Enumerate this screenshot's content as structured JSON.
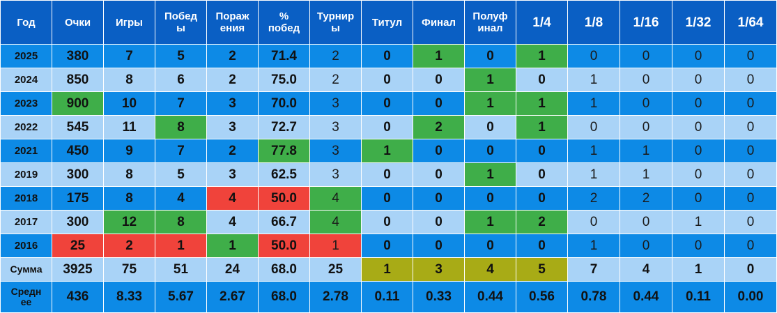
{
  "headers": [
    "Год",
    "Очки",
    "Игры",
    "Побед\nы",
    "Пораж\nения",
    "%\nпобед",
    "Турнир\nы",
    "Титул",
    "Финал",
    "Полуф\nинал",
    "1/4",
    "1/8",
    "1/16",
    "1/32",
    "1/64"
  ],
  "rows": [
    {
      "year": "2025",
      "values": [
        "380",
        "7",
        "5",
        "2",
        "71.4",
        "2",
        "0",
        "1",
        "0",
        "1",
        "0",
        "0",
        "0",
        "0"
      ]
    },
    {
      "year": "2024",
      "values": [
        "850",
        "8",
        "6",
        "2",
        "75.0",
        "2",
        "0",
        "0",
        "1",
        "0",
        "1",
        "0",
        "0",
        "0"
      ]
    },
    {
      "year": "2023",
      "values": [
        "900",
        "10",
        "7",
        "3",
        "70.0",
        "3",
        "0",
        "0",
        "1",
        "1",
        "1",
        "0",
        "0",
        "0"
      ]
    },
    {
      "year": "2022",
      "values": [
        "545",
        "11",
        "8",
        "3",
        "72.7",
        "3",
        "0",
        "2",
        "0",
        "1",
        "0",
        "0",
        "0",
        "0"
      ]
    },
    {
      "year": "2021",
      "values": [
        "450",
        "9",
        "7",
        "2",
        "77.8",
        "3",
        "1",
        "0",
        "0",
        "0",
        "1",
        "1",
        "0",
        "0"
      ]
    },
    {
      "year": "2019",
      "values": [
        "300",
        "8",
        "5",
        "3",
        "62.5",
        "3",
        "0",
        "0",
        "1",
        "0",
        "1",
        "1",
        "0",
        "0"
      ]
    },
    {
      "year": "2018",
      "values": [
        "175",
        "8",
        "4",
        "4",
        "50.0",
        "4",
        "0",
        "0",
        "0",
        "0",
        "2",
        "2",
        "0",
        "0"
      ]
    },
    {
      "year": "2017",
      "values": [
        "300",
        "12",
        "8",
        "4",
        "66.7",
        "4",
        "0",
        "0",
        "1",
        "2",
        "0",
        "0",
        "1",
        "0"
      ]
    },
    {
      "year": "2016",
      "values": [
        "25",
        "2",
        "1",
        "1",
        "50.0",
        "1",
        "0",
        "0",
        "0",
        "0",
        "1",
        "0",
        "0",
        "0"
      ]
    }
  ],
  "sum_row": {
    "label": "Сумма",
    "values": [
      "3925",
      "75",
      "51",
      "24",
      "68.0",
      "25",
      "1",
      "3",
      "4",
      "5",
      "7",
      "4",
      "1",
      "0"
    ]
  },
  "avg_row": {
    "label": "Средн\nее",
    "values": [
      "436",
      "8.33",
      "5.67",
      "2.67",
      "68.0",
      "2.78",
      "0.11",
      "0.33",
      "0.44",
      "0.56",
      "0.78",
      "0.44",
      "0.11",
      "0.00"
    ]
  },
  "colors": {
    "header_blue": "#0a5fc4",
    "row_dark_blue": "#0d8ae6",
    "row_light_blue": "#a9d3f7",
    "highlight_green": "#3fae49",
    "highlight_red": "#f0433b",
    "highlight_olive": "#a8ab16"
  }
}
